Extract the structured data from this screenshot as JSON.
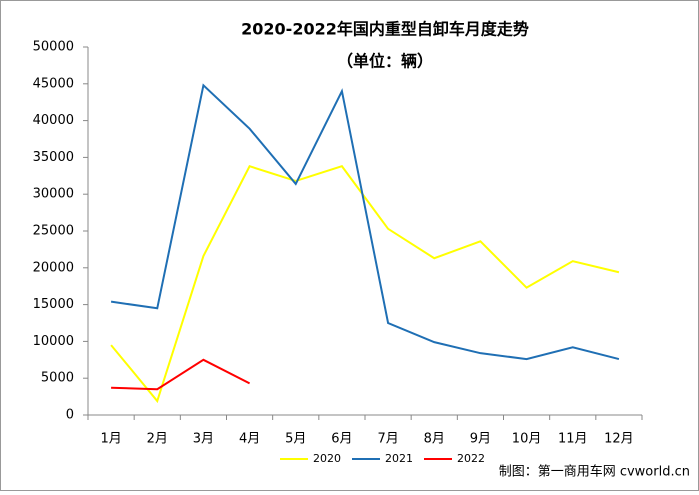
{
  "chart_data": {
    "type": "line",
    "title": "2020-2022年国内重型自卸车月度走势",
    "subtitle": "（单位：辆）",
    "categories": [
      "1月",
      "2月",
      "3月",
      "4月",
      "5月",
      "6月",
      "7月",
      "8月",
      "9月",
      "10月",
      "11月",
      "12月"
    ],
    "series": [
      {
        "name": "2020",
        "color": "#ffff00",
        "values": [
          9500,
          1900,
          21600,
          33800,
          31800,
          33800,
          25300,
          21300,
          23600,
          17300,
          20900,
          19400
        ]
      },
      {
        "name": "2021",
        "color": "#1f6fb4",
        "values": [
          15400,
          14500,
          44800,
          38900,
          31400,
          44000,
          12500,
          9900,
          8400,
          7600,
          9200,
          7600
        ]
      },
      {
        "name": "2022",
        "color": "#ff0000",
        "values": [
          3700,
          3500,
          7500,
          4300,
          null,
          null,
          null,
          null,
          null,
          null,
          null,
          null
        ]
      }
    ],
    "ylim": [
      0,
      50000
    ],
    "yticks": [
      0,
      5000,
      10000,
      15000,
      20000,
      25000,
      30000,
      35000,
      40000,
      45000,
      50000
    ],
    "grid": false,
    "legend": "bottom",
    "source": "制图：第一商用车网 cvworld.cn"
  }
}
